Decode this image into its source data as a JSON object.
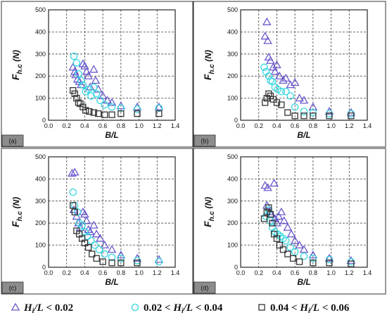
{
  "chart_data": [
    {
      "type": "scatter",
      "panel_label": "(a)",
      "xlabel": "B/L",
      "ylabel": "F_h.c (N)",
      "xlim": [
        0.0,
        1.4
      ],
      "ylim": [
        0,
        500
      ],
      "xticks": [
        "0.0",
        "0.2",
        "0.4",
        "0.6",
        "0.8",
        "1.0",
        "1.2",
        "1.4"
      ],
      "yticks": [
        "0",
        "100",
        "200",
        "300",
        "400",
        "500"
      ],
      "grid": "dashed",
      "series": [
        {
          "name": "Hi/L < 0.02",
          "marker": "triangle",
          "color": "#6a5acd",
          "points": [
            [
              0.27,
              240
            ],
            [
              0.29,
              220
            ],
            [
              0.3,
              205
            ],
            [
              0.32,
              185
            ],
            [
              0.34,
              175
            ],
            [
              0.36,
              160
            ],
            [
              0.38,
              255
            ],
            [
              0.4,
              245
            ],
            [
              0.42,
              220
            ],
            [
              0.44,
              200
            ],
            [
              0.46,
              150
            ],
            [
              0.5,
              230
            ],
            [
              0.52,
              180
            ],
            [
              0.55,
              140
            ],
            [
              0.6,
              110
            ],
            [
              0.65,
              90
            ],
            [
              0.7,
              80
            ],
            [
              0.8,
              65
            ],
            [
              0.98,
              60
            ],
            [
              1.22,
              60
            ]
          ]
        },
        {
          "name": "0.02 < Hi/L < 0.04",
          "marker": "circle",
          "color": "#33d6e0",
          "points": [
            [
              0.28,
              290
            ],
            [
              0.31,
              260
            ],
            [
              0.33,
              210
            ],
            [
              0.36,
              180
            ],
            [
              0.38,
              160
            ],
            [
              0.41,
              130
            ],
            [
              0.44,
              140
            ],
            [
              0.47,
              110
            ],
            [
              0.5,
              150
            ],
            [
              0.53,
              120
            ],
            [
              0.57,
              90
            ],
            [
              0.62,
              70
            ],
            [
              0.7,
              60
            ],
            [
              0.8,
              55
            ],
            [
              0.98,
              50
            ],
            [
              1.22,
              55
            ]
          ]
        },
        {
          "name": "0.04 < Hi/L < 0.06",
          "marker": "square",
          "color": "#333333",
          "points": [
            [
              0.27,
              135
            ],
            [
              0.29,
              120
            ],
            [
              0.31,
              100
            ],
            [
              0.33,
              80
            ],
            [
              0.35,
              75
            ],
            [
              0.38,
              60
            ],
            [
              0.41,
              45
            ],
            [
              0.45,
              40
            ],
            [
              0.5,
              35
            ],
            [
              0.55,
              30
            ],
            [
              0.62,
              25
            ],
            [
              0.7,
              25
            ],
            [
              0.8,
              30
            ],
            [
              0.98,
              30
            ],
            [
              1.22,
              30
            ]
          ]
        }
      ]
    },
    {
      "type": "scatter",
      "panel_label": "(b)",
      "xlabel": "B/L",
      "ylabel": "F_h.c (N)",
      "xlim": [
        0.0,
        1.4
      ],
      "ylim": [
        0,
        500
      ],
      "xticks": [
        "0.0",
        "0.2",
        "0.4",
        "0.6",
        "0.8",
        "1.0",
        "1.2",
        "1.4"
      ],
      "yticks": [
        "0",
        "100",
        "200",
        "300",
        "400",
        "500"
      ],
      "grid": "dashed",
      "series": [
        {
          "name": "Hi/L < 0.02",
          "marker": "triangle",
          "color": "#6a5acd",
          "points": [
            [
              0.29,
              445
            ],
            [
              0.27,
              380
            ],
            [
              0.3,
              360
            ],
            [
              0.31,
              285
            ],
            [
              0.33,
              270
            ],
            [
              0.36,
              240
            ],
            [
              0.38,
              220
            ],
            [
              0.4,
              250
            ],
            [
              0.43,
              200
            ],
            [
              0.47,
              180
            ],
            [
              0.5,
              190
            ],
            [
              0.55,
              160
            ],
            [
              0.6,
              170
            ],
            [
              0.65,
              100
            ],
            [
              0.7,
              90
            ],
            [
              0.8,
              60
            ],
            [
              0.98,
              40
            ],
            [
              1.22,
              35
            ]
          ]
        },
        {
          "name": "0.02 < Hi/L < 0.04",
          "marker": "circle",
          "color": "#33d6e0",
          "points": [
            [
              0.26,
              240
            ],
            [
              0.28,
              220
            ],
            [
              0.31,
              200
            ],
            [
              0.33,
              180
            ],
            [
              0.35,
              175
            ],
            [
              0.38,
              150
            ],
            [
              0.41,
              140
            ],
            [
              0.45,
              130
            ],
            [
              0.5,
              130
            ],
            [
              0.55,
              110
            ],
            [
              0.6,
              60
            ],
            [
              0.7,
              40
            ],
            [
              0.8,
              35
            ],
            [
              0.98,
              30
            ],
            [
              1.22,
              30
            ]
          ]
        },
        {
          "name": "0.04 < Hi/L < 0.06",
          "marker": "square",
          "color": "#333333",
          "points": [
            [
              0.27,
              80
            ],
            [
              0.29,
              100
            ],
            [
              0.31,
              120
            ],
            [
              0.33,
              110
            ],
            [
              0.36,
              95
            ],
            [
              0.4,
              80
            ],
            [
              0.45,
              70
            ],
            [
              0.52,
              35
            ],
            [
              0.6,
              20
            ],
            [
              0.7,
              20
            ],
            [
              0.8,
              20
            ],
            [
              0.98,
              20
            ],
            [
              1.22,
              20
            ]
          ]
        }
      ]
    },
    {
      "type": "scatter",
      "panel_label": "(c)",
      "xlabel": "B/L",
      "ylabel": "F_h.c (N)",
      "xlim": [
        0.0,
        1.4
      ],
      "ylim": [
        0,
        500
      ],
      "xticks": [
        "0.0",
        "0.2",
        "0.4",
        "0.6",
        "0.8",
        "1.0",
        "1.2",
        "1.4"
      ],
      "yticks": [
        "0",
        "100",
        "200",
        "300",
        "400",
        "500"
      ],
      "grid": "dashed",
      "series": [
        {
          "name": "Hi/L < 0.02",
          "marker": "triangle",
          "color": "#6a5acd",
          "points": [
            [
              0.26,
              425
            ],
            [
              0.29,
              430
            ],
            [
              0.28,
              260
            ],
            [
              0.31,
              230
            ],
            [
              0.33,
              200
            ],
            [
              0.35,
              180
            ],
            [
              0.38,
              250
            ],
            [
              0.4,
              240
            ],
            [
              0.42,
              210
            ],
            [
              0.44,
              170
            ],
            [
              0.46,
              160
            ],
            [
              0.5,
              190
            ],
            [
              0.53,
              150
            ],
            [
              0.57,
              130
            ],
            [
              0.62,
              100
            ],
            [
              0.7,
              80
            ],
            [
              0.8,
              55
            ],
            [
              0.98,
              40
            ],
            [
              1.22,
              35
            ]
          ]
        },
        {
          "name": "0.02 < Hi/L < 0.04",
          "marker": "circle",
          "color": "#33d6e0",
          "points": [
            [
              0.27,
              340
            ],
            [
              0.29,
              280
            ],
            [
              0.32,
              250
            ],
            [
              0.34,
              200
            ],
            [
              0.37,
              190
            ],
            [
              0.4,
              160
            ],
            [
              0.43,
              140
            ],
            [
              0.47,
              120
            ],
            [
              0.51,
              100
            ],
            [
              0.56,
              80
            ],
            [
              0.62,
              60
            ],
            [
              0.7,
              45
            ],
            [
              0.8,
              40
            ],
            [
              0.98,
              30
            ],
            [
              1.22,
              25
            ]
          ]
        },
        {
          "name": "0.04 < Hi/L < 0.06",
          "marker": "square",
          "color": "#333333",
          "points": [
            [
              0.27,
              280
            ],
            [
              0.29,
              250
            ],
            [
              0.31,
              165
            ],
            [
              0.34,
              150
            ],
            [
              0.37,
              130
            ],
            [
              0.4,
              110
            ],
            [
              0.44,
              90
            ],
            [
              0.48,
              60
            ],
            [
              0.53,
              40
            ],
            [
              0.6,
              25
            ],
            [
              0.7,
              20
            ],
            [
              0.8,
              20
            ],
            [
              0.98,
              20
            ]
          ]
        }
      ]
    },
    {
      "type": "scatter",
      "panel_label": "(d)",
      "xlabel": "B/L",
      "ylabel": "F_h.c (N)",
      "xlim": [
        0.0,
        1.4
      ],
      "ylim": [
        0,
        500
      ],
      "xticks": [
        "0.0",
        "0.2",
        "0.4",
        "0.6",
        "0.8",
        "1.0",
        "1.2",
        "1.4"
      ],
      "yticks": [
        "0",
        "100",
        "200",
        "300",
        "400",
        "500"
      ],
      "grid": "dashed",
      "series": [
        {
          "name": "Hi/L < 0.02",
          "marker": "triangle",
          "color": "#6a5acd",
          "points": [
            [
              0.27,
              370
            ],
            [
              0.3,
              360
            ],
            [
              0.29,
              280
            ],
            [
              0.32,
              250
            ],
            [
              0.34,
              240
            ],
            [
              0.37,
              380
            ],
            [
              0.38,
              220
            ],
            [
              0.4,
              200
            ],
            [
              0.42,
              230
            ],
            [
              0.45,
              250
            ],
            [
              0.48,
              210
            ],
            [
              0.52,
              180
            ],
            [
              0.56,
              150
            ],
            [
              0.6,
              120
            ],
            [
              0.65,
              100
            ],
            [
              0.7,
              80
            ],
            [
              0.8,
              55
            ],
            [
              0.98,
              40
            ],
            [
              1.22,
              30
            ]
          ]
        },
        {
          "name": "0.02 < Hi/L < 0.04",
          "marker": "circle",
          "color": "#33d6e0",
          "points": [
            [
              0.28,
              230
            ],
            [
              0.31,
              260
            ],
            [
              0.33,
              210
            ],
            [
              0.35,
              180
            ],
            [
              0.38,
              160
            ],
            [
              0.41,
              150
            ],
            [
              0.44,
              140
            ],
            [
              0.47,
              130
            ],
            [
              0.5,
              120
            ],
            [
              0.55,
              90
            ],
            [
              0.6,
              70
            ],
            [
              0.7,
              50
            ],
            [
              0.8,
              40
            ],
            [
              0.98,
              35
            ],
            [
              1.22,
              25
            ]
          ]
        },
        {
          "name": "0.04 < Hi/L < 0.06",
          "marker": "square",
          "color": "#333333",
          "points": [
            [
              0.26,
              220
            ],
            [
              0.29,
              250
            ],
            [
              0.31,
              270
            ],
            [
              0.33,
              240
            ],
            [
              0.35,
              200
            ],
            [
              0.37,
              150
            ],
            [
              0.4,
              130
            ],
            [
              0.43,
              100
            ],
            [
              0.47,
              80
            ],
            [
              0.52,
              60
            ],
            [
              0.58,
              40
            ],
            [
              0.65,
              25
            ],
            [
              0.8,
              20
            ],
            [
              0.98,
              20
            ],
            [
              1.22,
              15
            ]
          ]
        }
      ]
    }
  ],
  "legend": [
    {
      "marker": "triangle",
      "color": "#6a5acd",
      "label": "Hi/L < 0.02"
    },
    {
      "marker": "circle",
      "color": "#33d6e0",
      "label": "0.02 < Hi/L < 0.04"
    },
    {
      "marker": "square",
      "color": "#333333",
      "label": "0.04 < Hi/L < 0.06"
    }
  ]
}
